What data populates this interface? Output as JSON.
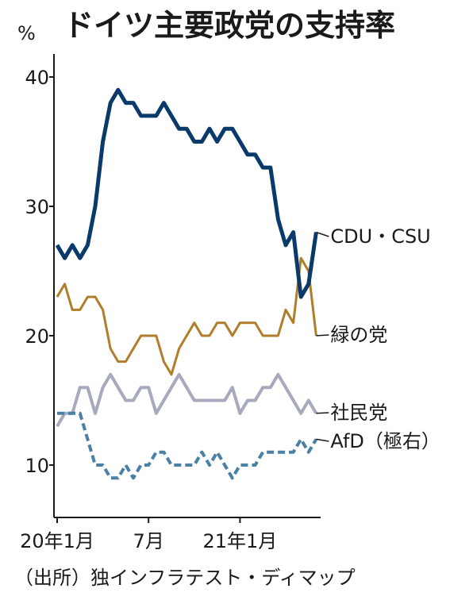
{
  "chart_data": {
    "type": "line",
    "title": "ドイツ主要政党の支持率",
    "unit": "%",
    "source": "（出所）独インフラテスト・ディマップ",
    "ylim": [
      5,
      45
    ],
    "yticks": [
      10,
      20,
      30,
      40
    ],
    "xticks": [
      {
        "index": 0,
        "label": "20年1月"
      },
      {
        "index": 12,
        "label": "7月"
      },
      {
        "index": 24,
        "label": "21年1月"
      }
    ],
    "colors": {
      "cdu": "#0a3a6b",
      "green": "#b07d2a",
      "spd": "#a7aabe",
      "afd": "#4a7fa6",
      "axis": "#1a1a1a"
    },
    "series": [
      {
        "name": "CDU・CSU",
        "key": "cdu",
        "style": "solid",
        "values": [
          27,
          26,
          27,
          26,
          27,
          30,
          35,
          38,
          39,
          38,
          38,
          37,
          37,
          37,
          38,
          37,
          36,
          36,
          35,
          35,
          36,
          35,
          36,
          36,
          35,
          34,
          34,
          33,
          33,
          29,
          27,
          28,
          23,
          24,
          28
        ]
      },
      {
        "name": "緑の党",
        "key": "green",
        "style": "solid",
        "values": [
          23,
          24,
          22,
          22,
          23,
          23,
          22,
          19,
          18,
          18,
          19,
          20,
          20,
          20,
          18,
          17,
          19,
          20,
          21,
          20,
          20,
          21,
          21,
          20,
          21,
          21,
          21,
          20,
          20,
          20,
          22,
          21,
          26,
          25,
          20
        ]
      },
      {
        "name": "社民党",
        "key": "spd",
        "style": "solid",
        "values": [
          13,
          14,
          14,
          16,
          16,
          14,
          16,
          17,
          16,
          15,
          15,
          16,
          16,
          14,
          15,
          16,
          17,
          16,
          15,
          15,
          15,
          15,
          15,
          16,
          14,
          15,
          15,
          16,
          16,
          17,
          16,
          15,
          14,
          15,
          14
        ]
      },
      {
        "name": "AfD（極右）",
        "key": "afd",
        "style": "dashed",
        "values": [
          14,
          14,
          14,
          14,
          12,
          10,
          10,
          9,
          9,
          10,
          9,
          10,
          10,
          11,
          11,
          10,
          10,
          10,
          10,
          11,
          10,
          11,
          10,
          9,
          10,
          10,
          10,
          11,
          11,
          11,
          11,
          11,
          12,
          11,
          12
        ]
      }
    ]
  }
}
